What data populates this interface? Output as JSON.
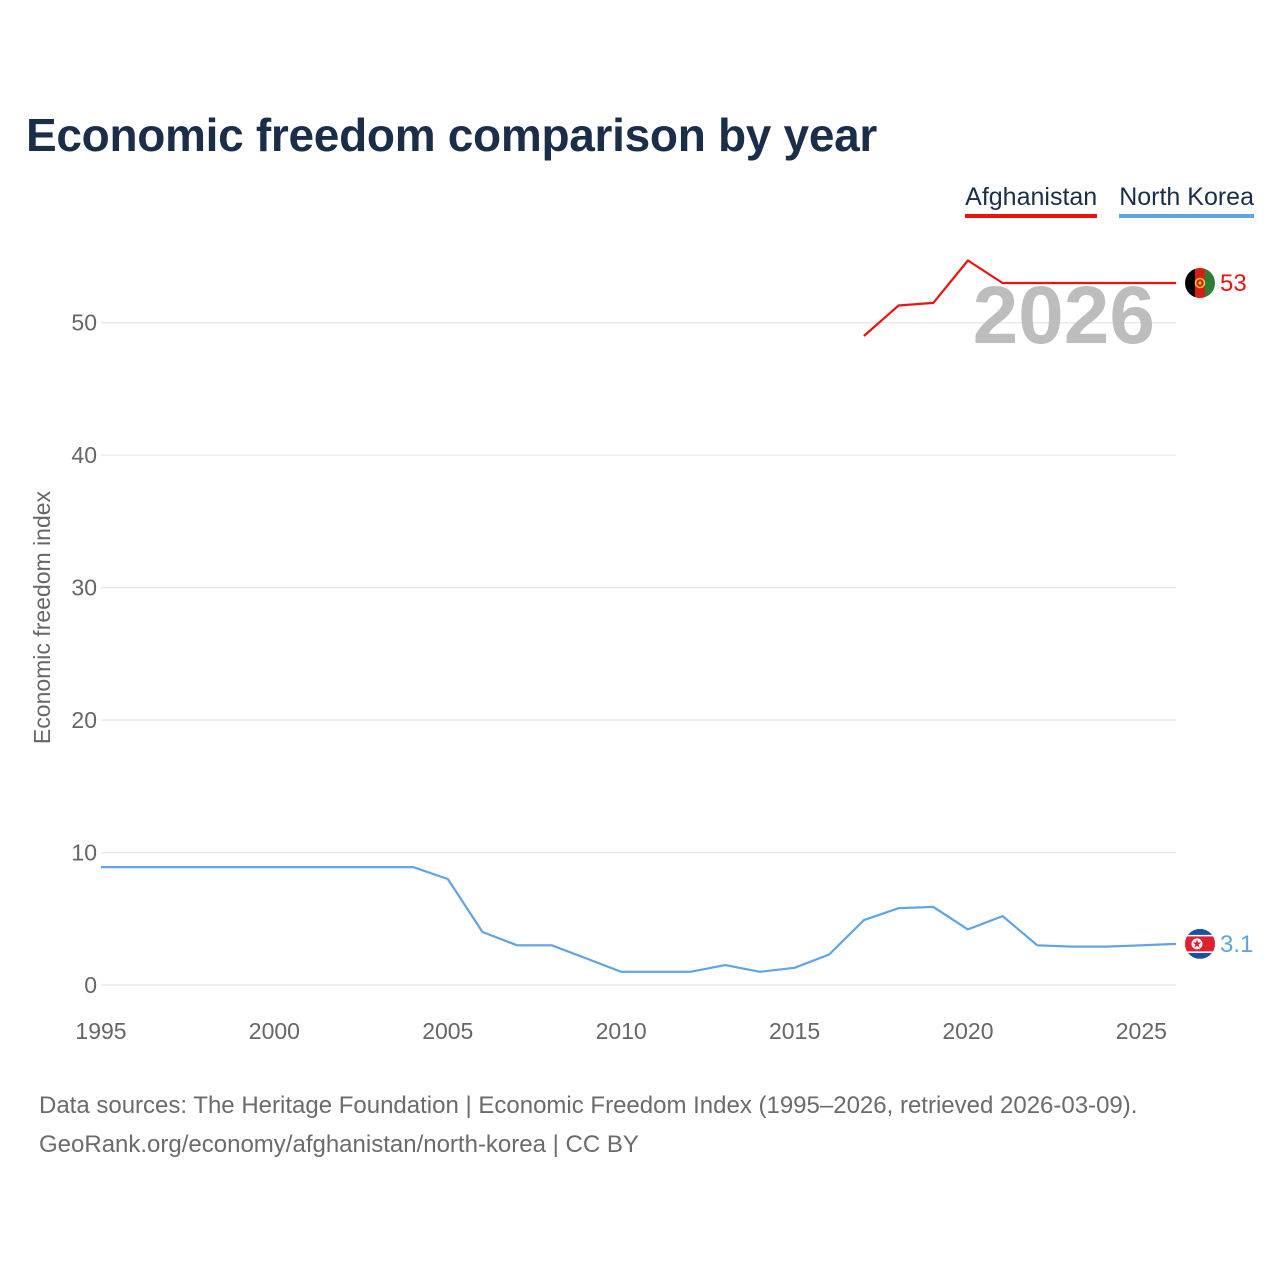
{
  "title": "Economic freedom comparison by year",
  "legend": [
    {
      "label": "Afghanistan",
      "color": "#ee1111"
    },
    {
      "label": "North Korea",
      "color": "#5ea4e6"
    }
  ],
  "chart_data": {
    "type": "line",
    "title": "Economic freedom comparison by year",
    "xlabel": "",
    "ylabel": "Economic freedom index",
    "xlim": [
      1995,
      2026
    ],
    "ylim": [
      0,
      57
    ],
    "x_ticks": [
      1995,
      2000,
      2005,
      2010,
      2015,
      2020,
      2025
    ],
    "y_ticks": [
      0,
      10,
      20,
      30,
      40,
      50
    ],
    "grid": true,
    "current_year": "2026",
    "series": [
      {
        "name": "Afghanistan",
        "color": "#ee1111",
        "end_label": "53",
        "x": [
          2017,
          2018,
          2019,
          2020,
          2021,
          2022,
          2023,
          2024,
          2025,
          2026
        ],
        "values": [
          49.0,
          51.3,
          51.5,
          54.7,
          53.0,
          53.0,
          53.0,
          53.0,
          53.0,
          53.0
        ]
      },
      {
        "name": "North Korea",
        "color": "#5ea4e6",
        "end_label": "3.1",
        "x": [
          1995,
          1996,
          1997,
          1998,
          1999,
          2000,
          2001,
          2002,
          2003,
          2004,
          2005,
          2006,
          2007,
          2008,
          2009,
          2010,
          2011,
          2012,
          2013,
          2014,
          2015,
          2016,
          2017,
          2018,
          2019,
          2020,
          2021,
          2022,
          2023,
          2024,
          2025,
          2026
        ],
        "values": [
          8.9,
          8.9,
          8.9,
          8.9,
          8.9,
          8.9,
          8.9,
          8.9,
          8.9,
          8.9,
          8.0,
          4.0,
          3.0,
          3.0,
          2.0,
          1.0,
          1.0,
          1.0,
          1.5,
          1.0,
          1.3,
          2.3,
          4.9,
          5.8,
          5.9,
          4.2,
          5.2,
          3.0,
          2.9,
          2.9,
          3.0,
          3.1
        ]
      }
    ]
  },
  "sources": {
    "line1": "Data sources: The Heritage Foundation | Economic Freedom Index (1995–2026, retrieved 2026-03-09).",
    "line2": "GeoRank.org/economy/afghanistan/north-korea | CC BY"
  }
}
